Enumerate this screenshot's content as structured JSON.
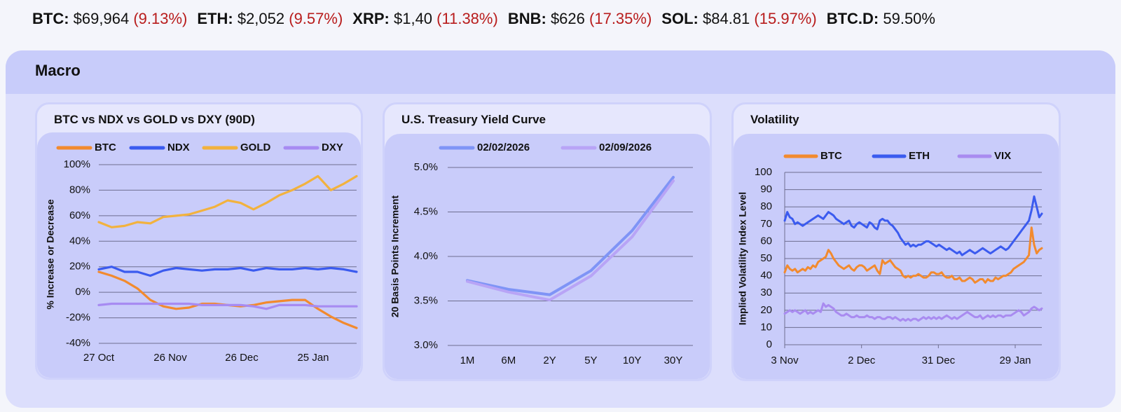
{
  "ticker": [
    {
      "sym": "BTC:",
      "price": "$69,964",
      "chg": "(9.13%)"
    },
    {
      "sym": "ETH:",
      "price": "$2,052",
      "chg": "(9.57%)"
    },
    {
      "sym": "XRP:",
      "price": "$1,40",
      "chg": "(11.38%)"
    },
    {
      "sym": "BNB:",
      "price": "$626",
      "chg": "(17.35%)"
    },
    {
      "sym": "SOL:",
      "price": "$84.81",
      "chg": "(15.97%)"
    },
    {
      "sym": "BTC.D:",
      "price": "59.50%",
      "chg": ""
    }
  ],
  "macro": {
    "title": "Macro"
  },
  "colors": {
    "btc": "#f28a2e",
    "ndx": "#3b5bef",
    "gold": "#f2b23e",
    "dxy": "#a78bf2",
    "vix": "#a98bf0",
    "ycA": "#7f94f6",
    "ycB": "#b8a4f6",
    "red": "#b81c1c"
  },
  "chart_data": [
    {
      "type": "line",
      "title": "BTC vs NDX vs GOLD vs DXY (90D)",
      "ylabel": "% Increase or Decrease",
      "ylim": [
        -40,
        100
      ],
      "yticks": [
        "100%",
        "80%",
        "60%",
        "40%",
        "20%",
        "0%",
        "-20%",
        "-40%"
      ],
      "xticks": [
        "27 Oct",
        "26 Nov",
        "26 Dec",
        "25 Jan"
      ],
      "grid": true,
      "legend_position": "top",
      "x_days": [
        0,
        5,
        10,
        15,
        20,
        25,
        30,
        35,
        40,
        45,
        50,
        55,
        60,
        65,
        70,
        75,
        80,
        85,
        90,
        95,
        100
      ],
      "series": [
        {
          "name": "BTC",
          "color": "#f28a2e",
          "values": [
            16,
            13,
            9,
            3,
            -6,
            -11,
            -13,
            -12,
            -9,
            -9,
            -10,
            -11,
            -10,
            -8,
            -7,
            -6,
            -6,
            -13,
            -19,
            -24,
            -28
          ]
        },
        {
          "name": "NDX",
          "color": "#3b5bef",
          "values": [
            18,
            20,
            16,
            16,
            13,
            17,
            19,
            18,
            17,
            18,
            18,
            19,
            17,
            19,
            18,
            18,
            19,
            18,
            19,
            18,
            16
          ]
        },
        {
          "name": "GOLD",
          "color": "#f2b23e",
          "values": [
            55,
            51,
            52,
            55,
            54,
            59,
            60,
            61,
            64,
            67,
            72,
            70,
            65,
            70,
            76,
            80,
            85,
            91,
            80,
            85,
            91
          ]
        },
        {
          "name": "DXY",
          "color": "#a78bf2",
          "values": [
            -10,
            -9,
            -9,
            -9,
            -9,
            -9,
            -9,
            -9,
            -10,
            -10,
            -10,
            -10,
            -11,
            -13,
            -10,
            -10,
            -10,
            -11,
            -11,
            -11,
            -11
          ]
        }
      ]
    },
    {
      "type": "line",
      "title": "U.S. Treasury Yield Curve",
      "ylabel": "20 Basis Points Increment",
      "ylim": [
        3.0,
        5.0
      ],
      "yticks": [
        "5.0%",
        "4.5%",
        "4.0%",
        "3.5%",
        "3.0%"
      ],
      "categories": [
        "1M",
        "6M",
        "2Y",
        "5Y",
        "10Y",
        "30Y"
      ],
      "grid": true,
      "legend_position": "top",
      "series": [
        {
          "name": "02/02/2026",
          "color": "#7f94f6",
          "values": [
            3.73,
            3.63,
            3.57,
            3.84,
            4.29,
            4.89
          ]
        },
        {
          "name": "02/09/2026",
          "color": "#b8a4f6",
          "values": [
            3.72,
            3.6,
            3.51,
            3.78,
            4.22,
            4.85
          ]
        }
      ]
    },
    {
      "type": "line",
      "title": "Volatility",
      "ylabel": "Implied Volatility Index Level",
      "ylim": [
        0,
        100
      ],
      "yticks": [
        "100",
        "90",
        "80",
        "70",
        "60",
        "50",
        "40",
        "30",
        "20",
        "10",
        "0"
      ],
      "xticks": [
        "3 Nov",
        "2 Dec",
        "31 Dec",
        "29 Jan"
      ],
      "grid": true,
      "legend_position": "top",
      "x_days": [
        0,
        1,
        2,
        3,
        4,
        5,
        6,
        7,
        8,
        9,
        10,
        11,
        12,
        13,
        14,
        15,
        16,
        17,
        18,
        19,
        20,
        21,
        22,
        23,
        24,
        25,
        26,
        27,
        28,
        29,
        30,
        31,
        32,
        33,
        34,
        35,
        36,
        37,
        38,
        39,
        40,
        41,
        42,
        43,
        44,
        45,
        46,
        47,
        48,
        49,
        50,
        51,
        52,
        53,
        54,
        55,
        56,
        57,
        58,
        59,
        60,
        61,
        62,
        63,
        64,
        65,
        66,
        67,
        68,
        69,
        70,
        71,
        72,
        73,
        74,
        75,
        76,
        77,
        78,
        79,
        80,
        81,
        82,
        83,
        84,
        85,
        86,
        87,
        88,
        89,
        90,
        91,
        92,
        93,
        94,
        95,
        96,
        97,
        98,
        99,
        100
      ],
      "series": [
        {
          "name": "BTC",
          "color": "#f28a2e",
          "values": [
            42,
            46,
            44,
            43,
            44,
            42,
            43,
            44,
            43,
            45,
            44,
            46,
            45,
            48,
            49,
            50,
            51,
            55,
            53,
            50,
            48,
            46,
            45,
            44,
            45,
            46,
            44,
            43,
            45,
            46,
            46,
            45,
            43,
            44,
            45,
            46,
            43,
            41,
            49,
            47,
            48,
            49,
            47,
            45,
            44,
            43,
            40,
            39,
            40,
            39,
            40,
            40,
            41,
            40,
            39,
            39,
            40,
            42,
            42,
            41,
            41,
            42,
            40,
            39,
            39,
            40,
            38,
            38,
            39,
            37,
            37,
            38,
            39,
            38,
            36,
            37,
            38,
            38,
            36,
            38,
            37,
            37,
            39,
            38,
            39,
            40,
            40,
            41,
            42,
            44,
            45,
            46,
            47,
            48,
            50,
            52,
            68,
            58,
            53,
            55,
            56
          ]
        },
        {
          "name": "ETH",
          "color": "#3b5bef",
          "values": [
            72,
            77,
            74,
            73,
            70,
            71,
            70,
            69,
            70,
            71,
            72,
            73,
            74,
            75,
            74,
            73,
            75,
            77,
            76,
            75,
            73,
            72,
            71,
            70,
            71,
            72,
            69,
            68,
            70,
            71,
            70,
            69,
            68,
            71,
            70,
            68,
            67,
            72,
            73,
            72,
            72,
            70,
            69,
            67,
            65,
            62,
            60,
            58,
            59,
            57,
            58,
            57,
            58,
            58,
            59,
            60,
            60,
            59,
            58,
            57,
            58,
            57,
            56,
            55,
            56,
            55,
            54,
            53,
            54,
            52,
            53,
            54,
            55,
            54,
            53,
            54,
            55,
            56,
            55,
            54,
            53,
            54,
            55,
            56,
            57,
            56,
            55,
            56,
            58,
            60,
            62,
            64,
            66,
            68,
            70,
            72,
            78,
            86,
            80,
            74,
            76
          ]
        },
        {
          "name": "VIX",
          "color": "#a98bf0",
          "values": [
            18,
            19,
            20,
            19,
            20,
            19,
            18,
            19,
            20,
            18,
            19,
            18,
            19,
            20,
            19,
            24,
            22,
            23,
            22,
            21,
            19,
            18,
            17,
            17,
            18,
            17,
            16,
            16,
            17,
            16,
            16,
            16,
            17,
            16,
            16,
            15,
            16,
            16,
            15,
            15,
            16,
            16,
            15,
            16,
            15,
            14,
            15,
            14,
            15,
            14,
            15,
            15,
            14,
            15,
            16,
            15,
            16,
            15,
            16,
            15,
            16,
            15,
            16,
            17,
            16,
            15,
            16,
            15,
            16,
            17,
            18,
            19,
            18,
            17,
            16,
            16,
            17,
            15,
            16,
            17,
            16,
            17,
            16,
            17,
            17,
            16,
            17,
            17,
            17,
            18,
            19,
            20,
            19,
            17,
            18,
            19,
            21,
            22,
            21,
            20,
            21
          ]
        }
      ]
    }
  ]
}
